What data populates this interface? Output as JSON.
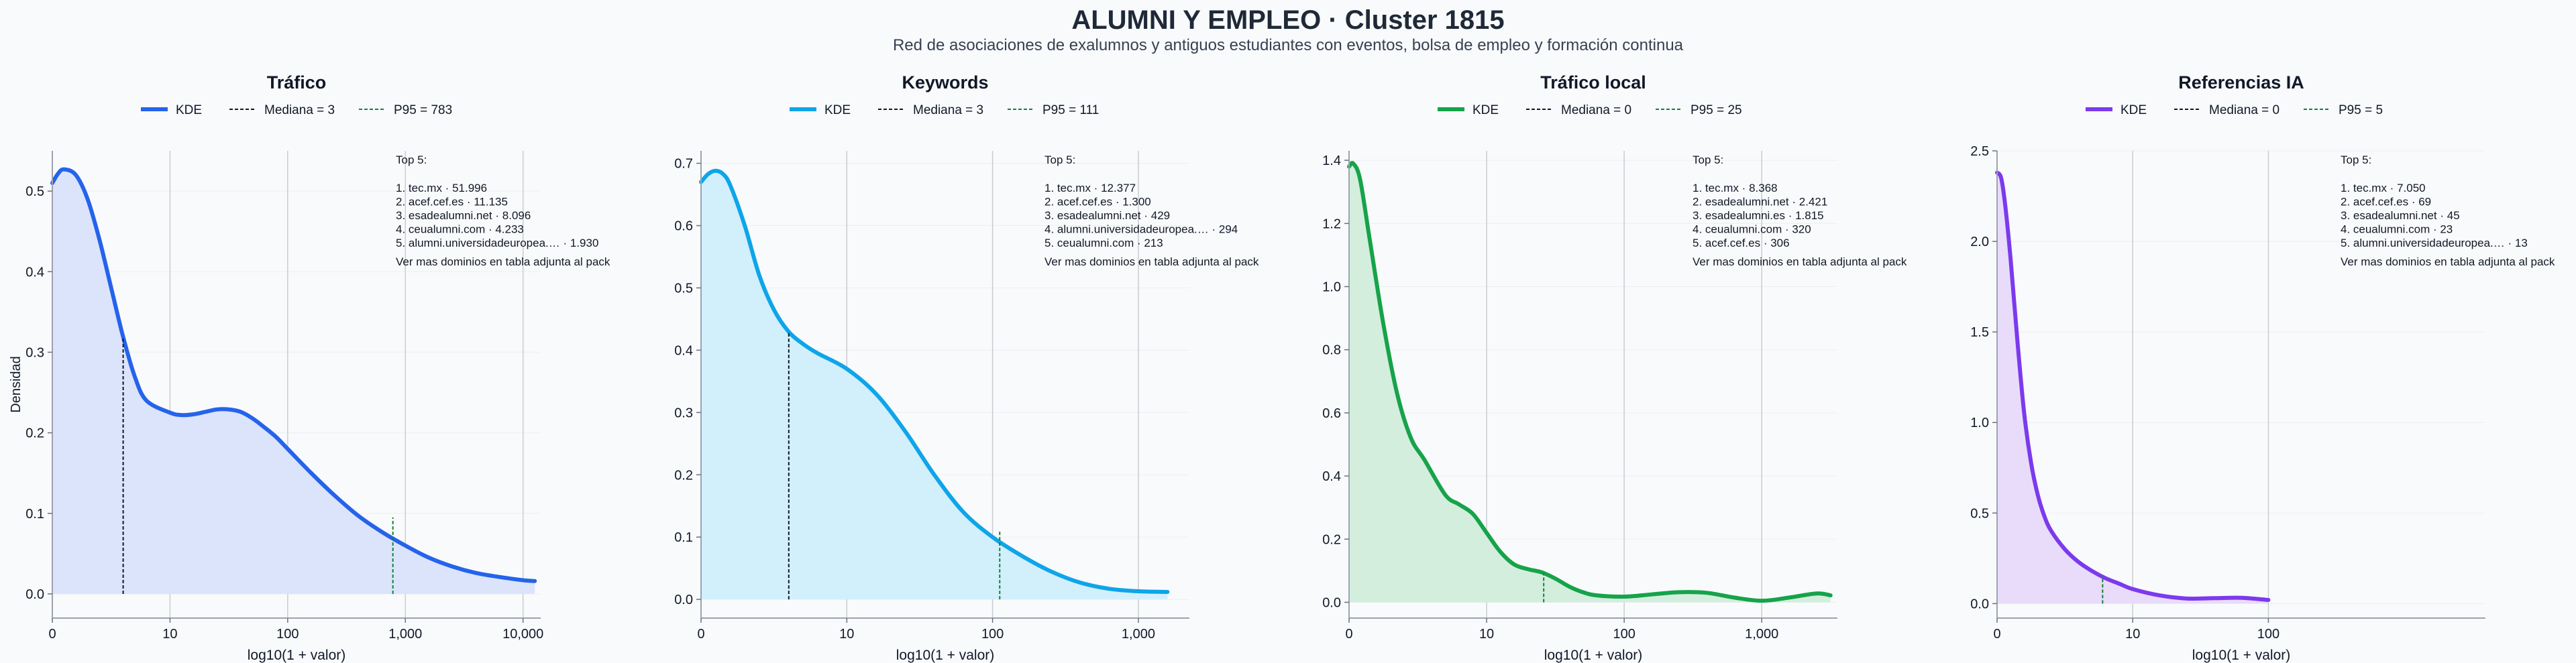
{
  "title": "ALUMNI Y EMPLEO · Cluster 1815",
  "subtitle": "Red de asociaciones de ex⁠alumnos y antiguos estudiantes con eventos, bolsa de empleo y formación continua",
  "shared_ylabel": "Densidad",
  "chart_data": [
    {
      "type": "area",
      "title": "Tráfico",
      "xlabel": "log10(1 + valor)",
      "ylabel": "Densidad",
      "color": "#2563eb",
      "fill": "#dbe4fb",
      "x_scale": "log10(1+x)",
      "xlim_log": [
        0,
        4.15
      ],
      "ylim": [
        -0.03,
        0.55
      ],
      "xticks": [
        {
          "v": 0,
          "label": "0"
        },
        {
          "v": 1,
          "label": "10"
        },
        {
          "v": 2,
          "label": "100"
        },
        {
          "v": 3,
          "label": "1,000"
        },
        {
          "v": 4,
          "label": "10,000"
        }
      ],
      "yticks": [
        {
          "v": 0,
          "label": "0.0"
        },
        {
          "v": 0.1,
          "label": "0.1"
        },
        {
          "v": 0.2,
          "label": "0.2"
        },
        {
          "v": 0.3,
          "label": "0.3"
        },
        {
          "v": 0.4,
          "label": "0.4"
        },
        {
          "v": 0.5,
          "label": "0.5"
        }
      ],
      "kde": {
        "x": [
          0,
          0.05,
          0.1,
          0.2,
          0.3,
          0.4,
          0.5,
          0.6,
          0.7,
          0.8,
          1.0,
          1.1,
          1.2,
          1.3,
          1.4,
          1.5,
          1.6,
          1.7,
          1.8,
          1.9,
          2.0,
          2.2,
          2.4,
          2.6,
          2.8,
          3.0,
          3.2,
          3.4,
          3.6,
          3.8,
          4.0,
          4.1
        ],
        "y": [
          0.51,
          0.522,
          0.527,
          0.52,
          0.49,
          0.44,
          0.38,
          0.32,
          0.27,
          0.24,
          0.225,
          0.222,
          0.223,
          0.226,
          0.229,
          0.229,
          0.226,
          0.218,
          0.207,
          0.195,
          0.18,
          0.15,
          0.122,
          0.097,
          0.077,
          0.06,
          0.045,
          0.034,
          0.026,
          0.021,
          0.017,
          0.016
        ]
      },
      "median": {
        "value": 3,
        "log": 0.602,
        "y": 0.317
      },
      "p95": {
        "value": 783,
        "log": 2.894,
        "y": 0.095
      },
      "legend": [
        "KDE",
        "Mediana = 3",
        "P95 = 783"
      ],
      "top5": {
        "header": "Top 5:",
        "items": [
          "1. tec.mx · 51.996",
          "2. acef.cef.es · 11.135",
          "3. esadealumni.net · 8.096",
          "4. ceualumni.com · 4.233",
          "5. alumni.universidadeuropea.… · 1.930"
        ],
        "footer": "Ver mas dominios en tabla adjunta al pack"
      }
    },
    {
      "type": "area",
      "title": "Keywords",
      "xlabel": "log10(1 + valor)",
      "ylabel": "",
      "color": "#0ea5e9",
      "fill": "#d2effc",
      "x_scale": "log10(1+x)",
      "xlim_log": [
        0,
        3.35
      ],
      "ylim": [
        -0.03,
        0.72
      ],
      "xticks": [
        {
          "v": 0,
          "label": "0"
        },
        {
          "v": 1,
          "label": "10"
        },
        {
          "v": 2,
          "label": "100"
        },
        {
          "v": 3,
          "label": "1,000"
        }
      ],
      "yticks": [
        {
          "v": 0,
          "label": "0.0"
        },
        {
          "v": 0.1,
          "label": "0.1"
        },
        {
          "v": 0.2,
          "label": "0.2"
        },
        {
          "v": 0.3,
          "label": "0.3"
        },
        {
          "v": 0.4,
          "label": "0.4"
        },
        {
          "v": 0.5,
          "label": "0.5"
        },
        {
          "v": 0.6,
          "label": "0.6"
        },
        {
          "v": 0.7,
          "label": "0.7"
        }
      ],
      "kde": {
        "x": [
          0,
          0.05,
          0.1,
          0.15,
          0.2,
          0.3,
          0.4,
          0.5,
          0.6,
          0.7,
          0.8,
          1.0,
          1.2,
          1.4,
          1.6,
          1.8,
          2.0,
          2.2,
          2.4,
          2.6,
          2.8,
          3.0,
          3.2
        ],
        "y": [
          0.67,
          0.683,
          0.688,
          0.683,
          0.665,
          0.6,
          0.52,
          0.465,
          0.43,
          0.41,
          0.395,
          0.37,
          0.33,
          0.27,
          0.2,
          0.14,
          0.1,
          0.07,
          0.045,
          0.027,
          0.017,
          0.013,
          0.012
        ]
      },
      "median": {
        "value": 3,
        "log": 0.602,
        "y": 0.428
      },
      "p95": {
        "value": 111,
        "log": 2.049,
        "y": 0.11
      },
      "legend": [
        "KDE",
        "Mediana = 3",
        "P95 = 111"
      ],
      "top5": {
        "header": "Top 5:",
        "items": [
          "1. tec.mx · 12.377",
          "2. acef.cef.es · 1.300",
          "3. esadealumni.net · 429",
          "4. alumni.universidadeuropea.… · 294",
          "5. ceualumni.com · 213"
        ],
        "footer": "Ver mas dominios en tabla adjunta al pack"
      }
    },
    {
      "type": "area",
      "title": "Tráfico local",
      "xlabel": "log10(1 + valor)",
      "ylabel": "",
      "color": "#16a34a",
      "fill": "#d3eedd",
      "x_scale": "log10(1+x)",
      "xlim_log": [
        0,
        3.55
      ],
      "ylim": [
        -0.05,
        1.43
      ],
      "xticks": [
        {
          "v": 0,
          "label": "0"
        },
        {
          "v": 1,
          "label": "10"
        },
        {
          "v": 2,
          "label": "100"
        },
        {
          "v": 3,
          "label": "1,000"
        }
      ],
      "yticks": [
        {
          "v": 0,
          "label": "0.0"
        },
        {
          "v": 0.2,
          "label": "0.2"
        },
        {
          "v": 0.4,
          "label": "0.4"
        },
        {
          "v": 0.6,
          "label": "0.6"
        },
        {
          "v": 0.8,
          "label": "0.8"
        },
        {
          "v": 1.0,
          "label": "1.0"
        },
        {
          "v": 1.2,
          "label": "1.2"
        },
        {
          "v": 1.4,
          "label": "1.4"
        }
      ],
      "kde": {
        "x": [
          0,
          0.03,
          0.08,
          0.15,
          0.25,
          0.35,
          0.45,
          0.55,
          0.7,
          0.8,
          0.9,
          1.0,
          1.1,
          1.2,
          1.3,
          1.4,
          1.5,
          1.6,
          1.7,
          1.8,
          2.0,
          2.2,
          2.4,
          2.6,
          2.8,
          3.0,
          3.2,
          3.4,
          3.5
        ],
        "y": [
          1.38,
          1.39,
          1.34,
          1.15,
          0.88,
          0.66,
          0.52,
          0.45,
          0.34,
          0.31,
          0.28,
          0.22,
          0.16,
          0.12,
          0.105,
          0.095,
          0.075,
          0.05,
          0.032,
          0.022,
          0.018,
          0.025,
          0.032,
          0.03,
          0.015,
          0.005,
          0.015,
          0.028,
          0.022
        ]
      },
      "median": {
        "value": 0,
        "log": 0,
        "y": 1.38
      },
      "p95": {
        "value": 25,
        "log": 1.415,
        "y": 0.093
      },
      "legend": [
        "KDE",
        "Mediana = 0",
        "P95 = 25"
      ],
      "top5": {
        "header": "Top 5:",
        "items": [
          "1. tec.mx · 8.368",
          "2. esadealumni.net · 2.421",
          "3. esadealumni.es · 1.815",
          "4. ceualumni.com · 320",
          "5. acef.cef.es · 306"
        ],
        "footer": "Ver mas dominios en tabla adjunta al pack"
      }
    },
    {
      "type": "area",
      "title": "Referencias IA",
      "xlabel": "log10(1 + valor)",
      "ylabel": "",
      "color": "#7c3aed",
      "fill": "#e8dcfa",
      "x_scale": "log10(1+x)",
      "xlim_log": [
        0,
        3.6
      ],
      "ylim": [
        -0.08,
        2.5
      ],
      "xticks": [
        {
          "v": 0,
          "label": "0"
        },
        {
          "v": 1,
          "label": "10"
        },
        {
          "v": 2,
          "label": "100"
        }
      ],
      "yticks": [
        {
          "v": 0,
          "label": "0.0"
        },
        {
          "v": 0.5,
          "label": "0.5"
        },
        {
          "v": 1.0,
          "label": "1.0"
        },
        {
          "v": 1.5,
          "label": "1.5"
        },
        {
          "v": 2.0,
          "label": "2.0"
        },
        {
          "v": 2.5,
          "label": "2.5"
        }
      ],
      "kde": {
        "x": [
          0,
          0.03,
          0.06,
          0.1,
          0.15,
          0.2,
          0.25,
          0.3,
          0.35,
          0.4,
          0.5,
          0.6,
          0.7,
          0.8,
          0.9,
          1.0,
          1.2,
          1.4,
          1.6,
          1.8,
          2.0
        ],
        "y": [
          2.38,
          2.35,
          2.2,
          1.9,
          1.45,
          1.05,
          0.78,
          0.6,
          0.48,
          0.4,
          0.3,
          0.23,
          0.18,
          0.14,
          0.11,
          0.08,
          0.045,
          0.028,
          0.03,
          0.032,
          0.02
        ]
      },
      "median": {
        "value": 0,
        "log": 0,
        "y": 2.38
      },
      "p95": {
        "value": 5,
        "log": 0.778,
        "y": 0.15
      },
      "legend": [
        "KDE",
        "Mediana = 0",
        "P95 = 5"
      ],
      "top5": {
        "header": "Top 5:",
        "items": [
          "1. tec.mx · 7.050",
          "2. acef.cef.es · 69",
          "3. esadealumni.net · 45",
          "4. ceualumni.com · 23",
          "5. alumni.universidadeuropea.… · 13"
        ],
        "footer": "Ver mas dominios en tabla adjunta al pack"
      }
    }
  ]
}
